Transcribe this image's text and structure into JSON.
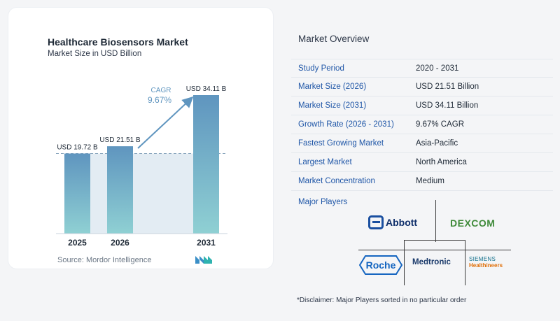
{
  "chart_data": {
    "type": "bar",
    "title": "Healthcare Biosensors Market",
    "subtitle": "Market Size in USD Billion",
    "categories": [
      "2025",
      "2026",
      "2031"
    ],
    "values": [
      19.72,
      21.51,
      34.11
    ],
    "data_labels": [
      "USD 19.72 B",
      "USD 21.51 B",
      "USD 34.11 B"
    ],
    "annotation": {
      "label": "CAGR",
      "value": "9.67%"
    },
    "colors": {
      "bar_top": "#5f95bf",
      "bar_bottom": "#8fd0d3",
      "band": "#e3ecf3"
    }
  },
  "source": "Source:  Mordor Intelligence",
  "overview": {
    "title": "Market Overview",
    "rows": [
      {
        "label": "Study Period",
        "value": "2020 - 2031"
      },
      {
        "label": "Market Size (2026)",
        "value": "USD 21.51 Billion"
      },
      {
        "label": "Market Size (2031)",
        "value": "USD 34.11 Billion"
      },
      {
        "label": "Growth Rate (2026 - 2031)",
        "value": "9.67% CAGR"
      },
      {
        "label": "Fastest Growing Market",
        "value": "Asia-Pacific"
      },
      {
        "label": "Largest Market",
        "value": "North America"
      },
      {
        "label": "Market Concentration",
        "value": "Medium"
      }
    ]
  },
  "players": {
    "label": "Major Players",
    "abbott": "Abbott",
    "dexcom": "DEXCOM",
    "roche": "Roche",
    "medtronic": "Medtronic",
    "siemens_line1": "SIEMENS",
    "siemens_line2": "Healthineers"
  },
  "disclaimer": "*Disclaimer: Major Players sorted in no particular order"
}
